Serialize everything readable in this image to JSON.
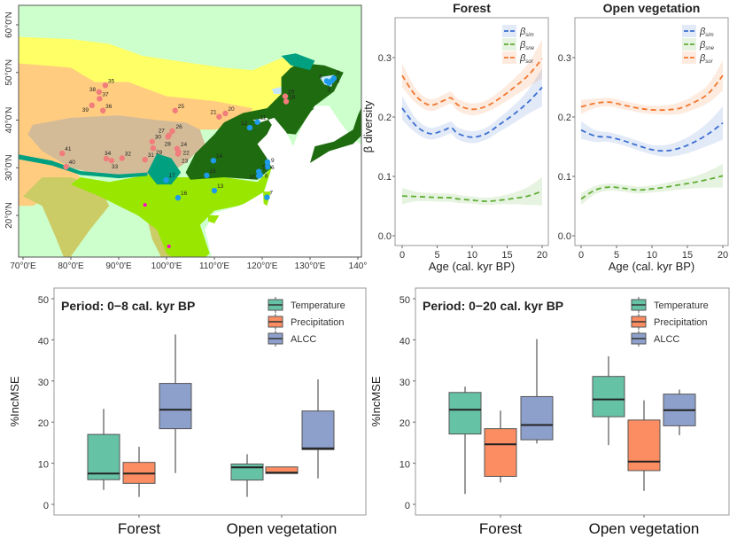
{
  "map": {
    "lon_ticks": [
      "70°0'E",
      "80°0'E",
      "90°0'E",
      "100°0'E",
      "110°0'E",
      "120°0'E",
      "130°0'E",
      "140°"
    ],
    "lat_ticks": [
      "60°0'N",
      "50°0'N",
      "40°0'N",
      "30°0'N",
      "20°0'N"
    ],
    "colors": {
      "tundra": "#ccffcc",
      "steppe": "#ffff66",
      "desert": "#ffcc80",
      "alpine": "#d4bb98",
      "temperate_forest": "#1f6b10",
      "subtropical": "#99e600",
      "montane": "#00a080",
      "savanna": "#cccc66",
      "sea": "#ffffff",
      "lake": "#c6e6fa",
      "mangrove": "#ff00cc"
    },
    "sites": [
      {
        "id": "1",
        "lon": 134.6,
        "lat": 48.3,
        "type": "forest"
      },
      {
        "id": "2",
        "lon": 135.0,
        "lat": 48.8,
        "type": "forest"
      },
      {
        "id": "3",
        "lon": 134.0,
        "lat": 47.8,
        "type": "forest"
      },
      {
        "id": "4",
        "lon": 133.5,
        "lat": 48.2,
        "type": "forest"
      },
      {
        "id": "5",
        "lon": 119.3,
        "lat": 29.2,
        "type": "forest"
      },
      {
        "id": "6",
        "lon": 121.1,
        "lat": 30.2,
        "type": "forest"
      },
      {
        "id": "7",
        "lon": 121.0,
        "lat": 23.8,
        "type": "forest"
      },
      {
        "id": "8",
        "lon": 119.6,
        "lat": 28.5,
        "type": "forest"
      },
      {
        "id": "9",
        "lon": 121.1,
        "lat": 31.2,
        "type": "forest"
      },
      {
        "id": "10",
        "lon": 119.3,
        "lat": 28.3,
        "type": "forest"
      },
      {
        "id": "11",
        "lon": 119.0,
        "lat": 39.6,
        "type": "forest"
      },
      {
        "id": "12",
        "lon": 117.4,
        "lat": 38.4,
        "type": "forest"
      },
      {
        "id": "13",
        "lon": 110.0,
        "lat": 25.2,
        "type": "forest"
      },
      {
        "id": "14",
        "lon": 109.8,
        "lat": 31.5,
        "type": "forest"
      },
      {
        "id": "15",
        "lon": 108.4,
        "lat": 28.4,
        "type": "forest"
      },
      {
        "id": "16",
        "lon": 102.4,
        "lat": 23.7,
        "type": "forest"
      },
      {
        "id": "17",
        "lon": 99.9,
        "lat": 27.4,
        "type": "forest"
      },
      {
        "id": "18",
        "lon": 125.0,
        "lat": 43.9,
        "type": "open"
      },
      {
        "id": "19",
        "lon": 124.8,
        "lat": 45.0,
        "type": "open"
      },
      {
        "id": "20",
        "lon": 112.3,
        "lat": 41.4,
        "type": "open"
      },
      {
        "id": "21",
        "lon": 111.0,
        "lat": 40.7,
        "type": "open"
      },
      {
        "id": "22",
        "lon": 102.5,
        "lat": 33.3,
        "type": "open"
      },
      {
        "id": "23",
        "lon": 102.4,
        "lat": 32.9,
        "type": "open"
      },
      {
        "id": "24",
        "lon": 102.2,
        "lat": 34.0,
        "type": "open"
      },
      {
        "id": "25",
        "lon": 101.8,
        "lat": 42.0,
        "type": "open"
      },
      {
        "id": "26",
        "lon": 101.2,
        "lat": 37.7,
        "type": "open"
      },
      {
        "id": "27",
        "lon": 100.5,
        "lat": 36.8,
        "type": "open"
      },
      {
        "id": "28",
        "lon": 100.3,
        "lat": 36.5,
        "type": "open"
      },
      {
        "id": "29",
        "lon": 97.2,
        "lat": 34.1,
        "type": "open"
      },
      {
        "id": "30",
        "lon": 97.0,
        "lat": 35.5,
        "type": "open"
      },
      {
        "id": "31",
        "lon": 95.5,
        "lat": 31.7,
        "type": "open"
      },
      {
        "id": "32",
        "lon": 90.7,
        "lat": 32.0,
        "type": "open"
      },
      {
        "id": "33",
        "lon": 88.5,
        "lat": 31.5,
        "type": "open"
      },
      {
        "id": "34",
        "lon": 87.4,
        "lat": 31.9,
        "type": "open"
      },
      {
        "id": "35",
        "lon": 87.2,
        "lat": 47.3,
        "type": "open"
      },
      {
        "id": "36",
        "lon": 86.7,
        "lat": 42.0,
        "type": "open"
      },
      {
        "id": "37",
        "lon": 86.0,
        "lat": 44.5,
        "type": "open"
      },
      {
        "id": "38",
        "lon": 85.9,
        "lat": 45.9,
        "type": "open"
      },
      {
        "id": "39",
        "lon": 84.4,
        "lat": 43.1,
        "type": "open"
      },
      {
        "id": "40",
        "lon": 79.0,
        "lat": 30.2,
        "type": "open"
      },
      {
        "id": "41",
        "lon": 78.2,
        "lat": 33.0,
        "type": "open"
      }
    ],
    "site_colors": {
      "forest": "#1e9be8",
      "open": "#f07c7c"
    }
  },
  "chart_data": [
    {
      "type": "line",
      "title": "Forest",
      "xlabel": "Age (cal. kyr BP)",
      "ylabel": "β diversity",
      "xlim": [
        0,
        20
      ],
      "ylim": [
        0,
        0.35
      ],
      "xticks": [
        "0",
        "5",
        "10",
        "15",
        "20"
      ],
      "yticks": [
        "0.0",
        "0.1",
        "0.2",
        "0.3"
      ],
      "legend": "top-right",
      "x": [
        0,
        2,
        4,
        6,
        7,
        8,
        10,
        12,
        14,
        16,
        18,
        20
      ],
      "series": [
        {
          "name": "β",
          "sub": "sim",
          "color": "#3c6fd1",
          "values": [
            0.215,
            0.185,
            0.172,
            0.178,
            0.182,
            0.172,
            0.166,
            0.172,
            0.188,
            0.205,
            0.225,
            0.25
          ],
          "ci": [
            0.02,
            0.012,
            0.01,
            0.01,
            0.01,
            0.01,
            0.01,
            0.01,
            0.012,
            0.015,
            0.02,
            0.032
          ]
        },
        {
          "name": "β",
          "sub": "sne",
          "color": "#5fae35",
          "values": [
            0.067,
            0.066,
            0.065,
            0.064,
            0.064,
            0.062,
            0.06,
            0.058,
            0.06,
            0.063,
            0.067,
            0.075
          ],
          "ci": [
            0.014,
            0.008,
            0.007,
            0.007,
            0.007,
            0.007,
            0.006,
            0.006,
            0.007,
            0.01,
            0.015,
            0.024
          ]
        },
        {
          "name": "β",
          "sub": "sor",
          "color": "#f2772e",
          "values": [
            0.27,
            0.235,
            0.22,
            0.228,
            0.232,
            0.22,
            0.213,
            0.218,
            0.232,
            0.25,
            0.27,
            0.298
          ],
          "ci": [
            0.02,
            0.012,
            0.01,
            0.01,
            0.01,
            0.01,
            0.01,
            0.01,
            0.012,
            0.015,
            0.02,
            0.033
          ]
        }
      ]
    },
    {
      "type": "line",
      "title": "Open vegetation",
      "xlabel": "Age (cal. kyr BP)",
      "xlim": [
        0,
        20
      ],
      "ylim": [
        0,
        0.35
      ],
      "xticks": [
        "0",
        "5",
        "10",
        "15",
        "20"
      ],
      "yticks": [
        "0.0",
        "0.1",
        "0.2",
        "0.3"
      ],
      "legend": "top-right",
      "x": [
        0,
        2,
        4,
        6,
        8,
        10,
        12,
        14,
        16,
        18,
        20
      ],
      "series": [
        {
          "name": "β",
          "sub": "sim",
          "color": "#3c6fd1",
          "values": [
            0.178,
            0.168,
            0.166,
            0.16,
            0.152,
            0.145,
            0.143,
            0.148,
            0.158,
            0.172,
            0.19
          ],
          "ci": [
            0.015,
            0.01,
            0.008,
            0.008,
            0.008,
            0.008,
            0.01,
            0.012,
            0.015,
            0.02,
            0.028
          ]
        },
        {
          "name": "β",
          "sub": "sne",
          "color": "#5fae35",
          "values": [
            0.062,
            0.077,
            0.082,
            0.08,
            0.077,
            0.079,
            0.082,
            0.086,
            0.09,
            0.095,
            0.101
          ],
          "ci": [
            0.01,
            0.007,
            0.006,
            0.006,
            0.006,
            0.006,
            0.007,
            0.008,
            0.01,
            0.014,
            0.02
          ]
        },
        {
          "name": "β",
          "sub": "sor",
          "color": "#f2772e",
          "values": [
            0.217,
            0.223,
            0.225,
            0.22,
            0.215,
            0.212,
            0.212,
            0.215,
            0.225,
            0.24,
            0.27
          ],
          "ci": [
            0.012,
            0.008,
            0.007,
            0.007,
            0.007,
            0.007,
            0.008,
            0.01,
            0.012,
            0.016,
            0.025
          ]
        }
      ]
    },
    {
      "type": "box",
      "title": "Period: 0−8 cal. kyr BP",
      "ylabel": "%IncMSE",
      "ylim": [
        0,
        50
      ],
      "yticks": [
        "0",
        "10",
        "20",
        "30",
        "40",
        "50"
      ],
      "categories": [
        "Forest",
        "Open vegetation"
      ],
      "legend": "top-right",
      "series": [
        {
          "name": "Temperature",
          "color": "#66c2a5",
          "boxes": [
            {
              "min": 3.5,
              "q1": 6,
              "median": 7.5,
              "q3": 17,
              "max": 23.2
            },
            {
              "min": 1.8,
              "q1": 5.9,
              "median": 9,
              "q3": 9.8,
              "max": 12.2
            }
          ]
        },
        {
          "name": "Precipitation",
          "color": "#fc8d62",
          "boxes": [
            {
              "min": 1.8,
              "q1": 5.1,
              "median": 7.5,
              "q3": 10.2,
              "max": 14
            },
            {
              "min": 7.5,
              "q1": 7.5,
              "median": 7.7,
              "q3": 9.1,
              "max": 9.1
            }
          ]
        },
        {
          "name": "ALCC",
          "color": "#8da0cb",
          "boxes": [
            {
              "min": 7.6,
              "q1": 18.4,
              "median": 23,
              "q3": 29.4,
              "max": 41.3
            },
            {
              "min": 6.3,
              "q1": 13.3,
              "median": 13.6,
              "q3": 22.7,
              "max": 30.4
            }
          ]
        }
      ]
    },
    {
      "type": "box",
      "title": "Period: 0−20 cal. kyr BP",
      "ylabel": "%IncMSE",
      "ylim": [
        0,
        50
      ],
      "yticks": [
        "0",
        "10",
        "20",
        "30",
        "40",
        "50"
      ],
      "categories": [
        "Forest",
        "Open vegetation"
      ],
      "legend": "top-right",
      "series": [
        {
          "name": "Temperature",
          "color": "#66c2a5",
          "boxes": [
            {
              "min": 2.5,
              "q1": 17.1,
              "median": 23,
              "q3": 27.2,
              "max": 28.6
            },
            {
              "min": 14.4,
              "q1": 21.3,
              "median": 25.5,
              "q3": 31.1,
              "max": 36
            }
          ]
        },
        {
          "name": "Precipitation",
          "color": "#fc8d62",
          "boxes": [
            {
              "min": 5.3,
              "q1": 6.8,
              "median": 14.6,
              "q3": 18.4,
              "max": 22.8
            },
            {
              "min": 3.3,
              "q1": 8.2,
              "median": 10.4,
              "q3": 20.5,
              "max": 25.3
            }
          ]
        },
        {
          "name": "ALCC",
          "color": "#8da0cb",
          "boxes": [
            {
              "min": 14.8,
              "q1": 15.7,
              "median": 19.3,
              "q3": 26.2,
              "max": 40.2
            },
            {
              "min": 16.8,
              "q1": 19.1,
              "median": 22.9,
              "q3": 26.8,
              "max": 27.9
            }
          ]
        }
      ]
    }
  ]
}
